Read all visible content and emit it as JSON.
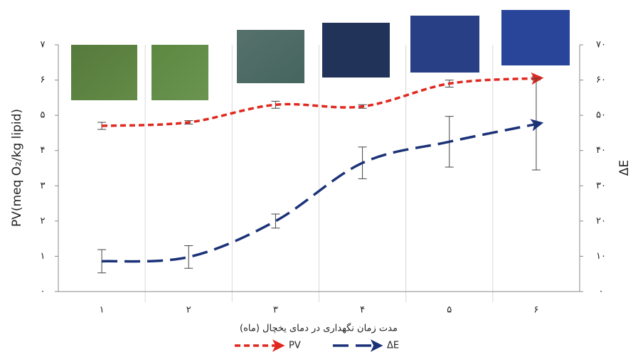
{
  "chart_data": {
    "type": "line",
    "categories": [
      "۱",
      "۲",
      "۳",
      "۴",
      "۵",
      "۶"
    ],
    "x_label": "مدت زمان نگهداری در دمای یخچال (ماه)",
    "y_label": "PV(meq O₂/kg lipid)",
    "y2_label": "ΔE",
    "ylim": [
      0,
      7
    ],
    "yticks": [
      {
        "value": 0,
        "label": "۰"
      },
      {
        "value": 1,
        "label": "۱"
      },
      {
        "value": 2,
        "label": "۲"
      },
      {
        "value": 3,
        "label": "۳"
      },
      {
        "value": 4,
        "label": "۴"
      },
      {
        "value": 5,
        "label": "۵"
      },
      {
        "value": 6,
        "label": "۶"
      },
      {
        "value": 7,
        "label": "۷"
      }
    ],
    "y2lim": [
      0,
      70
    ],
    "y2ticks": [
      {
        "value": 0,
        "label": "۰"
      },
      {
        "value": 10,
        "label": "۱۰"
      },
      {
        "value": 20,
        "label": "۲۰"
      },
      {
        "value": 30,
        "label": "۳۰"
      },
      {
        "value": 40,
        "label": "۴۰"
      },
      {
        "value": 50,
        "label": "۵۰"
      },
      {
        "value": 60,
        "label": "۶۰"
      },
      {
        "value": 70,
        "label": "۷۰"
      }
    ],
    "series": [
      {
        "name": "PV",
        "color": "#e0281e",
        "values": [
          4.7,
          4.8,
          5.3,
          5.25,
          5.9,
          6.05
        ],
        "errors": [
          0.1,
          0.05,
          0.1,
          0.05,
          0.1,
          0.05
        ]
      },
      {
        "name": "ΔE",
        "color": "#1b3278",
        "axis": "y2",
        "values": [
          8.6,
          9.8,
          20,
          36.5,
          42.5,
          47.5
        ],
        "errors": [
          3.3,
          3.2,
          2,
          4.5,
          7.2,
          13
        ]
      }
    ]
  }
}
